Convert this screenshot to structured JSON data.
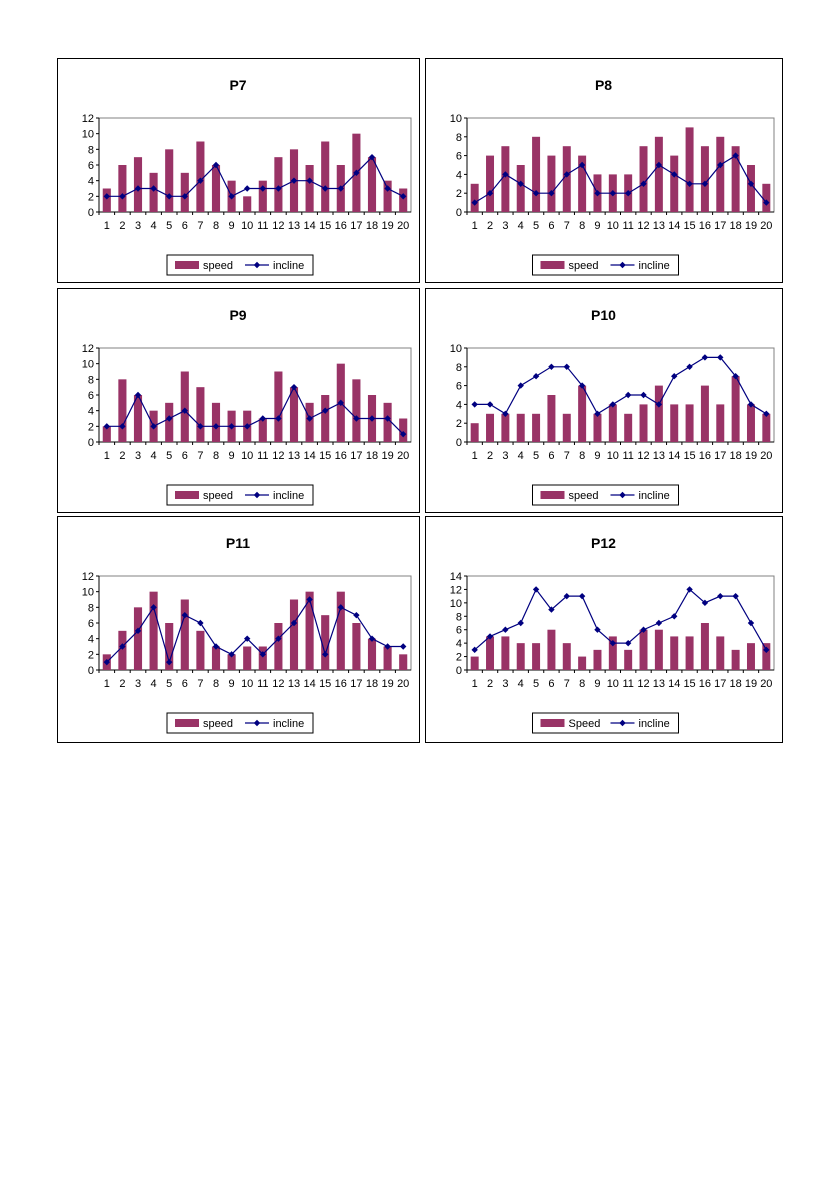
{
  "colors": {
    "bar": "#993366",
    "line": "#000080",
    "axis": "#808080",
    "text": "#000000"
  },
  "chart_data": [
    {
      "type": "bar",
      "title": "P7",
      "x": [
        1,
        2,
        3,
        4,
        5,
        6,
        7,
        8,
        9,
        10,
        11,
        12,
        13,
        14,
        15,
        16,
        17,
        18,
        19,
        20
      ],
      "ylim": [
        0,
        12
      ],
      "yticks": [
        0,
        2,
        4,
        6,
        8,
        10,
        12
      ],
      "legend": "bottom",
      "series": [
        {
          "name": "speed",
          "type": "bar",
          "values": [
            3,
            6,
            7,
            5,
            8,
            5,
            9,
            6,
            4,
            2,
            4,
            7,
            8,
            6,
            9,
            6,
            10,
            7,
            4,
            3
          ]
        },
        {
          "name": "incline",
          "type": "line",
          "values": [
            2,
            2,
            3,
            3,
            2,
            2,
            4,
            6,
            2,
            3,
            3,
            3,
            4,
            4,
            3,
            3,
            5,
            7,
            3,
            2
          ]
        }
      ]
    },
    {
      "type": "bar",
      "title": "P8",
      "x": [
        1,
        2,
        3,
        4,
        5,
        6,
        7,
        8,
        9,
        10,
        11,
        12,
        13,
        14,
        15,
        16,
        17,
        18,
        19,
        20
      ],
      "ylim": [
        0,
        10
      ],
      "yticks": [
        0,
        2,
        4,
        6,
        8,
        10
      ],
      "legend": "bottom",
      "series": [
        {
          "name": "speed",
          "type": "bar",
          "values": [
            3,
            6,
            7,
            5,
            8,
            6,
            7,
            6,
            4,
            4,
            4,
            7,
            8,
            6,
            9,
            7,
            8,
            7,
            5,
            3
          ]
        },
        {
          "name": "incline",
          "type": "line",
          "values": [
            1,
            2,
            4,
            3,
            2,
            2,
            4,
            5,
            2,
            2,
            2,
            3,
            5,
            4,
            3,
            3,
            5,
            6,
            3,
            1
          ]
        }
      ]
    },
    {
      "type": "bar",
      "title": "P9",
      "x": [
        1,
        2,
        3,
        4,
        5,
        6,
        7,
        8,
        9,
        10,
        11,
        12,
        13,
        14,
        15,
        16,
        17,
        18,
        19,
        20
      ],
      "ylim": [
        0,
        12
      ],
      "yticks": [
        0,
        2,
        4,
        6,
        8,
        10,
        12
      ],
      "legend": "bottom",
      "series": [
        {
          "name": "speed",
          "type": "bar",
          "values": [
            2,
            8,
            6,
            4,
            5,
            9,
            7,
            5,
            4,
            4,
            3,
            9,
            7,
            5,
            6,
            10,
            8,
            6,
            5,
            3
          ]
        },
        {
          "name": "incline",
          "type": "line",
          "values": [
            2,
            2,
            6,
            2,
            3,
            4,
            2,
            2,
            2,
            2,
            3,
            3,
            7,
            3,
            4,
            5,
            3,
            3,
            3,
            1
          ]
        }
      ]
    },
    {
      "type": "bar",
      "title": "P10",
      "x": [
        1,
        2,
        3,
        4,
        5,
        6,
        7,
        8,
        9,
        10,
        11,
        12,
        13,
        14,
        15,
        16,
        17,
        18,
        19,
        20
      ],
      "ylim": [
        0,
        10
      ],
      "yticks": [
        0,
        2,
        4,
        6,
        8,
        10
      ],
      "legend": "bottom",
      "series": [
        {
          "name": "speed",
          "type": "bar",
          "values": [
            2,
            3,
            3,
            3,
            3,
            5,
            3,
            6,
            3,
            4,
            3,
            4,
            6,
            4,
            4,
            6,
            4,
            7,
            4,
            3
          ]
        },
        {
          "name": "incline",
          "type": "line",
          "values": [
            4,
            4,
            3,
            6,
            7,
            8,
            8,
            6,
            3,
            4,
            5,
            5,
            4,
            7,
            8,
            9,
            9,
            7,
            4,
            3
          ]
        }
      ]
    },
    {
      "type": "bar",
      "title": "P11",
      "x": [
        1,
        2,
        3,
        4,
        5,
        6,
        7,
        8,
        9,
        10,
        11,
        12,
        13,
        14,
        15,
        16,
        17,
        18,
        19,
        20
      ],
      "ylim": [
        0,
        12
      ],
      "yticks": [
        0,
        2,
        4,
        6,
        8,
        10,
        12
      ],
      "legend": "bottom",
      "series": [
        {
          "name": "speed",
          "type": "bar",
          "values": [
            2,
            5,
            8,
            10,
            6,
            9,
            5,
            3,
            2,
            3,
            3,
            6,
            9,
            10,
            7,
            10,
            6,
            4,
            3,
            2
          ]
        },
        {
          "name": "incline",
          "type": "line",
          "values": [
            1,
            3,
            5,
            8,
            1,
            7,
            6,
            3,
            2,
            4,
            2,
            4,
            6,
            9,
            2,
            8,
            7,
            4,
            3,
            3
          ]
        }
      ]
    },
    {
      "type": "bar",
      "title": "P12",
      "x": [
        1,
        2,
        3,
        4,
        5,
        6,
        7,
        8,
        9,
        10,
        11,
        12,
        13,
        14,
        15,
        16,
        17,
        18,
        19,
        20
      ],
      "ylim": [
        0,
        14
      ],
      "yticks": [
        0,
        2,
        4,
        6,
        8,
        10,
        12,
        14
      ],
      "legend": "bottom",
      "series": [
        {
          "name": "Speed",
          "type": "bar",
          "values": [
            2,
            5,
            5,
            4,
            4,
            6,
            4,
            2,
            3,
            5,
            3,
            6,
            6,
            5,
            5,
            7,
            5,
            3,
            4,
            4
          ]
        },
        {
          "name": "incline",
          "type": "line",
          "values": [
            3,
            5,
            6,
            7,
            12,
            9,
            11,
            11,
            6,
            4,
            4,
            6,
            7,
            8,
            12,
            10,
            11,
            11,
            7,
            3
          ]
        }
      ]
    }
  ]
}
